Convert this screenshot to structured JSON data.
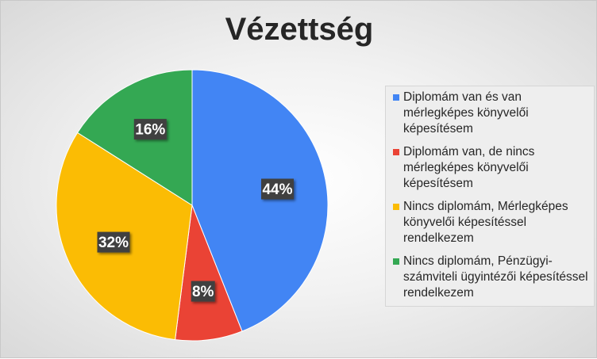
{
  "chart_data": {
    "type": "pie",
    "title": "Vézettség",
    "legend_position": "right",
    "categories": [
      "Diplomám van és van mérlegképes könyvelői képesítésem",
      "Diplomám van, de nincs mérlegképes könyvelői képesítésem",
      "Nincs diplomám, Mérlegképes könyvelői képesítéssel rendelkezem",
      "Nincs diplomám, Pénzügyi-számviteli ügyintézői képesítéssel rendelkezem"
    ],
    "values": [
      44,
      8,
      32,
      16
    ],
    "data_labels": [
      "44%",
      "8%",
      "32%",
      "16%"
    ],
    "colors": [
      "#4285F4",
      "#EA4335",
      "#FBBC04",
      "#34A853"
    ]
  }
}
